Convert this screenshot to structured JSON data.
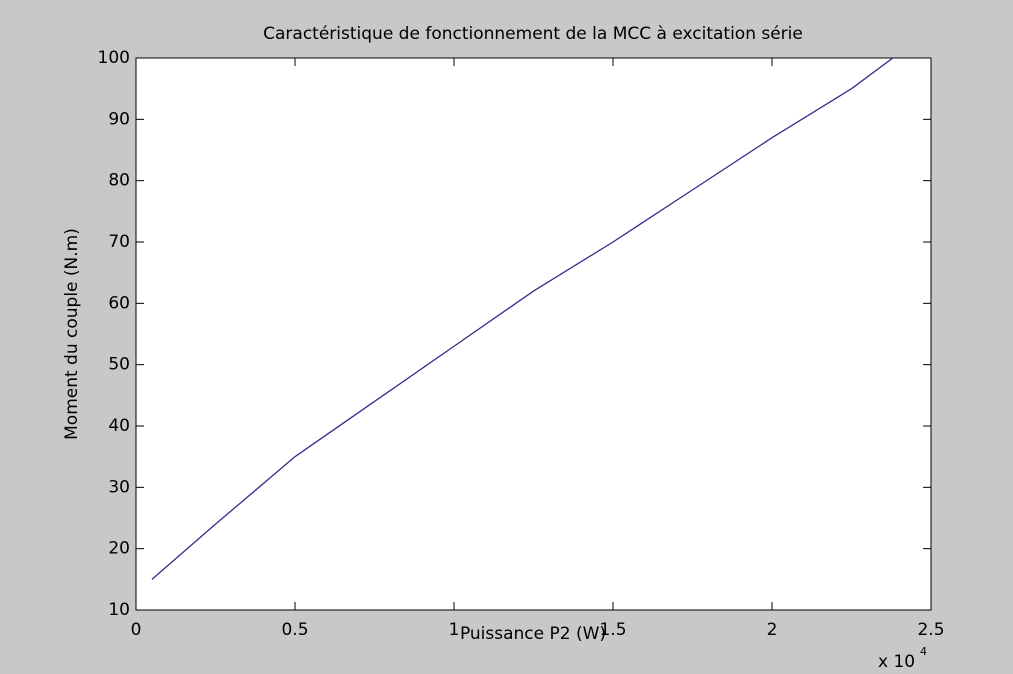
{
  "chart_data": {
    "type": "line",
    "title": "Caractéristique de fonctionnement de la MCC à excitation série",
    "xlabel": "Puissance P2 (W)",
    "ylabel": "Moment du couple (N.m)",
    "x_multiplier": "x 10",
    "x_multiplier_exponent": "4",
    "series": [
      {
        "name": "Moment du couple",
        "color": "#2f2f8f",
        "x": [
          0.05,
          0.25,
          0.5,
          0.75,
          1.0,
          1.25,
          1.5,
          1.75,
          2.0,
          2.25,
          2.38
        ],
        "values": [
          15,
          24,
          35,
          44,
          53,
          62,
          70,
          78.5,
          87,
          95,
          100
        ]
      }
    ],
    "xlim": [
      0,
      2.5
    ],
    "xticks": [
      0,
      0.5,
      1,
      1.5,
      2,
      2.5
    ],
    "ylim": [
      10,
      100
    ],
    "yticks": [
      10,
      20,
      30,
      40,
      50,
      60,
      70,
      80,
      90,
      100
    ],
    "grid": false
  }
}
